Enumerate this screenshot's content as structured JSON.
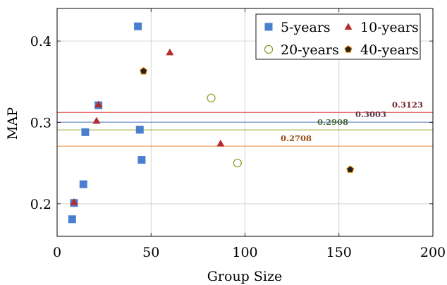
{
  "chart_data": {
    "type": "scatter",
    "xlabel": "Group Size",
    "ylabel": "MAP",
    "xlim": [
      0,
      200
    ],
    "ylim": [
      0.16,
      0.44
    ],
    "xticks": [
      0,
      50,
      100,
      150,
      200
    ],
    "yticks": [
      0.2,
      0.3,
      0.4
    ],
    "xtick_labels": [
      "0",
      "50",
      "100",
      "150",
      "200"
    ],
    "ytick_labels": [
      "0.2",
      "0.3",
      "0.4"
    ],
    "grid": true,
    "legend_position": "top-right",
    "series": [
      {
        "name": "5-years",
        "marker": "square",
        "color": "#4a7fcf",
        "points": [
          [
            8,
            0.181
          ],
          [
            9,
            0.201
          ],
          [
            14,
            0.224
          ],
          [
            15,
            0.288
          ],
          [
            22,
            0.321
          ],
          [
            43,
            0.418
          ],
          [
            44,
            0.291
          ],
          [
            45,
            0.254
          ]
        ]
      },
      {
        "name": "10-years",
        "marker": "triangle",
        "color": "#b52a2a",
        "points": [
          [
            9,
            0.202
          ],
          [
            21,
            0.302
          ],
          [
            22,
            0.322
          ],
          [
            60,
            0.386
          ],
          [
            87,
            0.274
          ]
        ]
      },
      {
        "name": "20-years",
        "marker": "circle-open",
        "color": "#8a9a1a",
        "points": [
          [
            82,
            0.33
          ],
          [
            96,
            0.25
          ]
        ]
      },
      {
        "name": "40-years",
        "marker": "pentagon",
        "color": "#222222",
        "edge_color": "#f08a00",
        "points": [
          [
            46,
            0.363
          ],
          [
            156,
            0.242
          ]
        ]
      }
    ],
    "hlines": [
      {
        "value": 0.3123,
        "label": "0.3123",
        "color": "#d94a4a",
        "text_color": "#7a2430"
      },
      {
        "value": 0.3003,
        "label": "0.3003",
        "color": "#5b7fc8",
        "text_color": "#5a3a4a"
      },
      {
        "value": 0.2908,
        "label": "0.2908",
        "color": "#9aaa2a",
        "text_color": "#4a6a3a"
      },
      {
        "value": 0.2708,
        "label": "0.2708",
        "color": "#f08a30",
        "text_color": "#9a4a10"
      }
    ]
  }
}
